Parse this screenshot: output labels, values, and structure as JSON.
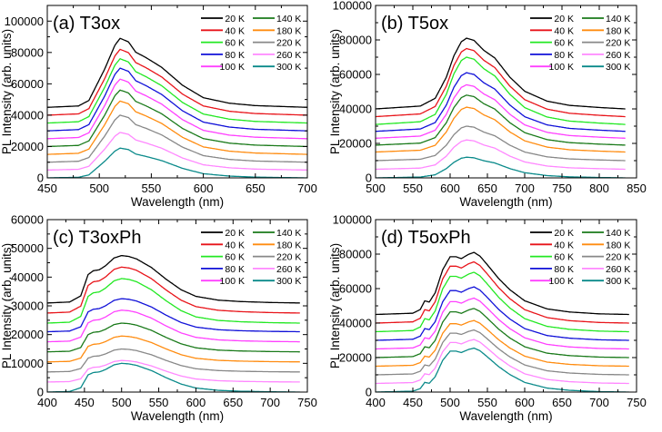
{
  "legend": {
    "labels": [
      "20 K",
      "40 K",
      "60 K",
      "80 K",
      "100 K",
      "140 K",
      "180 K",
      "220 K",
      "260 K",
      "300 K"
    ],
    "colors": [
      "#000000",
      "#e8141a",
      "#22e822",
      "#1010d8",
      "#ff40ff",
      "#1a7a1a",
      "#ff8c10",
      "#888888",
      "#ff88ff",
      "#0a8a8a"
    ]
  },
  "chart_data": [
    {
      "type": "line",
      "panel": "(a)",
      "sample": "T3ox",
      "xlabel": "Wavelength (nm)",
      "ylabel": "PL Intensity (arb. units)",
      "xlim": [
        450,
        700
      ],
      "ylim": [
        0,
        110000
      ],
      "xticks": [
        450,
        500,
        550,
        600,
        650,
        700
      ],
      "yticks": [
        0,
        20000,
        40000,
        60000,
        80000,
        100000
      ],
      "offsets": [
        45000,
        40000,
        35000,
        30000,
        25000,
        20000,
        15000,
        10000,
        5000,
        0
      ],
      "peaks": [
        44000,
        42000,
        41000,
        40000,
        38000,
        36000,
        34000,
        30000,
        24000,
        19000
      ],
      "profile": [
        [
          450,
          0.0
        ],
        [
          480,
          0.02
        ],
        [
          490,
          0.1
        ],
        [
          500,
          0.4
        ],
        [
          505,
          0.55
        ],
        [
          515,
          0.9
        ],
        [
          520,
          1.0
        ],
        [
          528,
          0.95
        ],
        [
          535,
          0.8
        ],
        [
          545,
          0.72
        ],
        [
          560,
          0.58
        ],
        [
          580,
          0.32
        ],
        [
          600,
          0.14
        ],
        [
          625,
          0.06
        ],
        [
          650,
          0.025
        ],
        [
          700,
          0.0
        ]
      ]
    },
    {
      "type": "line",
      "panel": "(b)",
      "sample": "T5ox",
      "xlabel": "Wavelength (nm)",
      "ylabel": "PL Intensity (arb. units)",
      "xlim": [
        500,
        850
      ],
      "ylim": [
        0,
        100000
      ],
      "xticks": [
        500,
        550,
        600,
        650,
        700,
        750,
        800,
        850
      ],
      "yticks": [
        0,
        20000,
        40000,
        60000,
        80000,
        100000
      ],
      "offsets": [
        40000,
        35500,
        31000,
        27000,
        23000,
        19000,
        15000,
        10000,
        5000,
        0
      ],
      "peaks": [
        41000,
        39500,
        39000,
        34000,
        31000,
        29000,
        26000,
        20000,
        17000,
        12000
      ],
      "profile": [
        [
          500,
          0.0
        ],
        [
          560,
          0.04
        ],
        [
          580,
          0.15
        ],
        [
          595,
          0.45
        ],
        [
          605,
          0.75
        ],
        [
          615,
          0.95
        ],
        [
          622,
          1.0
        ],
        [
          632,
          0.97
        ],
        [
          645,
          0.83
        ],
        [
          660,
          0.72
        ],
        [
          680,
          0.45
        ],
        [
          700,
          0.25
        ],
        [
          730,
          0.11
        ],
        [
          760,
          0.05
        ],
        [
          800,
          0.02
        ],
        [
          835,
          0.0
        ]
      ]
    },
    {
      "type": "line",
      "panel": "(c)",
      "sample": "T3oxPh",
      "xlabel": "Wavelength (nm)",
      "ylabel": "PL Intensity (arb. units)",
      "xlim": [
        400,
        750
      ],
      "ylim": [
        0,
        60000
      ],
      "xticks": [
        400,
        450,
        500,
        550,
        600,
        650,
        700,
        750
      ],
      "yticks": [
        0,
        10000,
        20000,
        30000,
        40000,
        50000,
        60000
      ],
      "offsets": [
        31000,
        27500,
        24000,
        21000,
        17500,
        14000,
        10500,
        7000,
        3500,
        0
      ],
      "peaks": [
        16500,
        16000,
        15500,
        11500,
        11000,
        10000,
        9000,
        8000,
        7500,
        10000
      ],
      "profile": [
        [
          400,
          0.0
        ],
        [
          430,
          0.02
        ],
        [
          445,
          0.15
        ],
        [
          455,
          0.6
        ],
        [
          462,
          0.68
        ],
        [
          470,
          0.7
        ],
        [
          478,
          0.78
        ],
        [
          490,
          0.95
        ],
        [
          500,
          1.0
        ],
        [
          510,
          0.98
        ],
        [
          520,
          0.93
        ],
        [
          540,
          0.75
        ],
        [
          560,
          0.5
        ],
        [
          580,
          0.28
        ],
        [
          600,
          0.14
        ],
        [
          630,
          0.06
        ],
        [
          660,
          0.03
        ],
        [
          700,
          0.01
        ],
        [
          740,
          0.0
        ]
      ]
    },
    {
      "type": "line",
      "panel": "(d)",
      "sample": "T5oxPh",
      "xlabel": "Wavelength (nm)",
      "ylabel": "PL Intensity (arb. units)",
      "xlim": [
        400,
        750
      ],
      "ylim": [
        0,
        100000
      ],
      "xticks": [
        400,
        450,
        500,
        550,
        600,
        650,
        700,
        750
      ],
      "yticks": [
        0,
        20000,
        40000,
        60000,
        80000,
        100000
      ],
      "offsets": [
        45000,
        40000,
        35000,
        30000,
        25000,
        20000,
        15000,
        10000,
        5000,
        0
      ],
      "peaks": [
        36000,
        35500,
        34500,
        31000,
        29500,
        28500,
        26500,
        26000,
        25500,
        25500
      ],
      "profile": [
        [
          400,
          0.0
        ],
        [
          450,
          0.02
        ],
        [
          460,
          0.08
        ],
        [
          466,
          0.22
        ],
        [
          472,
          0.2
        ],
        [
          480,
          0.35
        ],
        [
          490,
          0.72
        ],
        [
          500,
          0.93
        ],
        [
          508,
          0.93
        ],
        [
          515,
          0.9
        ],
        [
          525,
          0.97
        ],
        [
          532,
          1.0
        ],
        [
          540,
          0.94
        ],
        [
          550,
          0.8
        ],
        [
          565,
          0.58
        ],
        [
          580,
          0.4
        ],
        [
          600,
          0.22
        ],
        [
          630,
          0.09
        ],
        [
          660,
          0.04
        ],
        [
          700,
          0.01
        ],
        [
          740,
          0.0
        ]
      ]
    }
  ]
}
